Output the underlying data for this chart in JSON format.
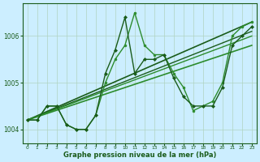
{
  "xlabel": "Graphe pression niveau de la mer (hPa)",
  "background_color": "#cceeff",
  "grid_color": "#b0d4c0",
  "line_color_dark": "#1a5c1a",
  "ylim": [
    1003.7,
    1006.7
  ],
  "xlim": [
    -0.5,
    23.5
  ],
  "yticks": [
    1004,
    1005,
    1006
  ],
  "xticks": [
    0,
    1,
    2,
    3,
    4,
    5,
    6,
    7,
    8,
    9,
    10,
    11,
    12,
    13,
    14,
    15,
    16,
    17,
    18,
    19,
    20,
    21,
    22,
    23
  ],
  "series": [
    {
      "x": [
        0,
        1,
        2,
        3,
        4,
        5,
        6,
        7,
        8,
        9,
        10,
        11,
        12,
        13,
        14,
        15,
        16,
        17,
        18,
        19,
        20,
        21,
        22,
        23
      ],
      "y": [
        1004.2,
        1004.2,
        1004.5,
        1004.5,
        1004.1,
        1004.0,
        1004.0,
        1004.3,
        1005.0,
        1005.5,
        1005.8,
        1006.5,
        1005.8,
        1005.6,
        1005.6,
        1005.2,
        1004.9,
        1004.4,
        1004.5,
        1004.6,
        1005.0,
        1006.0,
        1006.2,
        1006.3
      ],
      "color": "#2d8c2d",
      "linewidth": 1.0,
      "marker": "o",
      "markersize": 2.0
    },
    {
      "x": [
        0,
        1,
        2,
        3,
        4,
        5,
        6,
        7,
        8,
        9,
        10,
        11,
        12,
        13,
        14,
        15,
        16,
        17,
        18,
        19,
        20,
        21,
        22,
        23
      ],
      "y": [
        1004.2,
        1004.2,
        1004.5,
        1004.5,
        1004.1,
        1004.0,
        1004.0,
        1004.3,
        1005.2,
        1005.7,
        1006.4,
        1005.2,
        1005.5,
        1005.5,
        1005.6,
        1005.1,
        1004.7,
        1004.5,
        1004.5,
        1004.5,
        1004.9,
        1005.8,
        1006.0,
        1006.2
      ],
      "color": "#1a5c1a",
      "linewidth": 1.0,
      "marker": "D",
      "markersize": 2.0
    },
    {
      "x": [
        0,
        23
      ],
      "y": [
        1004.2,
        1006.3
      ],
      "color": "#1a5c1a",
      "linewidth": 1.2,
      "marker": null,
      "markersize": 0
    },
    {
      "x": [
        0,
        23
      ],
      "y": [
        1004.2,
        1005.8
      ],
      "color": "#2d8c2d",
      "linewidth": 1.2,
      "marker": null,
      "markersize": 0
    },
    {
      "x": [
        0,
        23
      ],
      "y": [
        1004.2,
        1006.1
      ],
      "color": "#1a5c1a",
      "linewidth": 1.0,
      "marker": null,
      "markersize": 0
    },
    {
      "x": [
        0,
        23
      ],
      "y": [
        1004.2,
        1006.0
      ],
      "color": "#2d8c2d",
      "linewidth": 1.0,
      "marker": null,
      "markersize": 0
    }
  ]
}
